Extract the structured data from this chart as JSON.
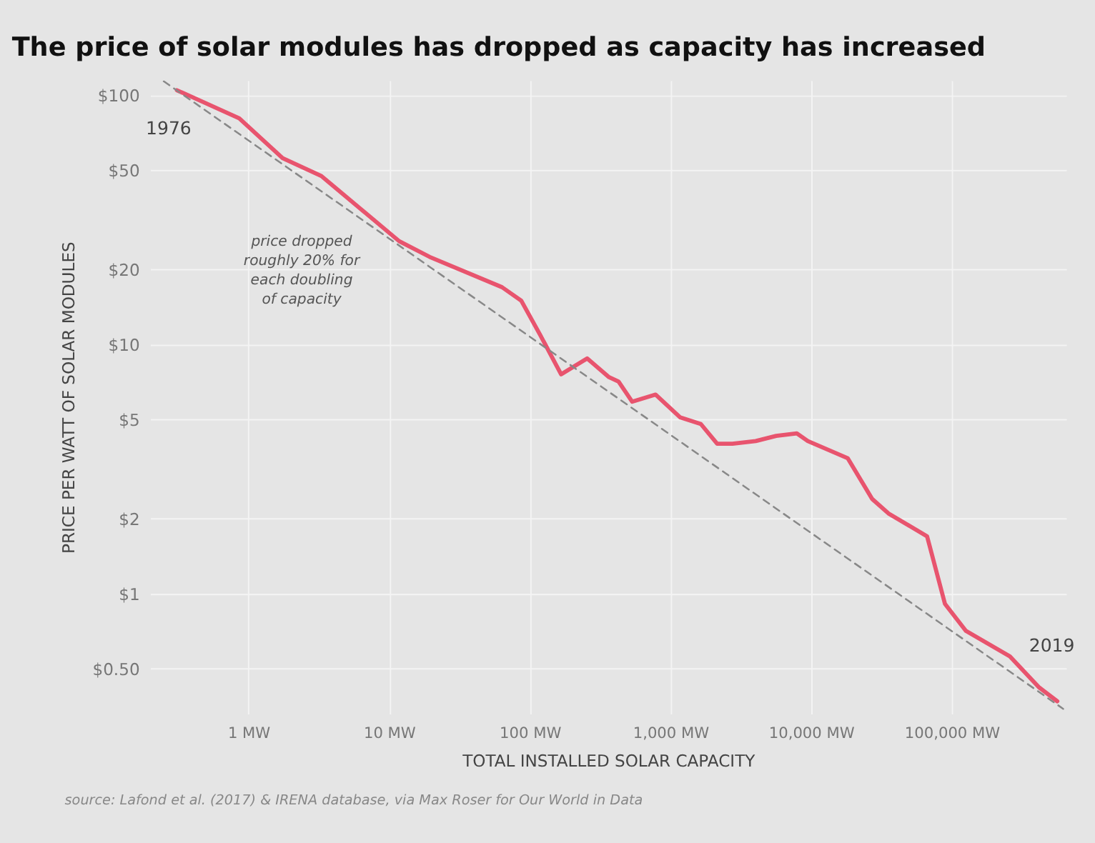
{
  "chart_data": {
    "type": "line",
    "title": "The price of solar modules has dropped as capacity has increased",
    "xlabel": "TOTAL INSTALLED SOLAR CAPACITY",
    "ylabel": "PRICE PER WATT OF SOLAR MODULES",
    "log": "xy",
    "grid": true,
    "xlim": [
      0.2,
      650000
    ],
    "ylim": [
      0.33,
      115
    ],
    "xticks": [
      {
        "value": 1,
        "label": "1 MW"
      },
      {
        "value": 10,
        "label": "10 MW"
      },
      {
        "value": 100,
        "label": "100 MW"
      },
      {
        "value": 1000,
        "label": "1,000 MW"
      },
      {
        "value": 10000,
        "label": "10,000 MW"
      },
      {
        "value": 100000,
        "label": "100,000 MW"
      }
    ],
    "yticks": [
      {
        "value": 0.5,
        "label": "$0.50"
      },
      {
        "value": 1,
        "label": "$1"
      },
      {
        "value": 2,
        "label": "$2"
      },
      {
        "value": 5,
        "label": "$5"
      },
      {
        "value": 10,
        "label": "$10"
      },
      {
        "value": 20,
        "label": "$20"
      },
      {
        "value": 50,
        "label": "$50"
      },
      {
        "value": 100,
        "label": "$100"
      }
    ],
    "series": [
      {
        "color": "#e8546e",
        "line_style": "solid",
        "x": [
          0.31,
          0.86,
          1.75,
          3.3,
          11.8,
          19.4,
          63.5,
          87,
          119,
          167,
          256,
          366,
          428,
          535,
          785,
          1175,
          1645,
          2150,
          2760,
          4040,
          5650,
          7920,
          9480,
          18200,
          27200,
          35500,
          66800,
          89500,
          126000,
          259000,
          419000,
          563000
        ],
        "values": [
          105,
          81,
          56,
          47.5,
          26,
          22.5,
          17,
          15,
          10.9,
          7.6,
          8.8,
          7.4,
          7.1,
          5.9,
          6.3,
          5.1,
          4.8,
          4.0,
          4.0,
          4.1,
          4.3,
          4.4,
          4.1,
          3.5,
          2.4,
          2.1,
          1.7,
          0.91,
          0.71,
          0.56,
          0.42,
          0.37
        ]
      },
      {
        "type": "line",
        "color": "#888888",
        "line_style": "dashed",
        "x": [
          0.25,
          620000
        ],
        "values": [
          114,
          0.345
        ]
      }
    ],
    "annotations": [
      {
        "text": "1976",
        "x": 0.31,
        "y": 105
      },
      {
        "text": "2019",
        "x": 563000,
        "y": 0.37
      },
      "price dropped\nroughly 20% for\neach doubling\nof capacity",
      "source: Lafond et al. (2017) & IRENA database, via Max Roser for Our World in Data"
    ]
  }
}
